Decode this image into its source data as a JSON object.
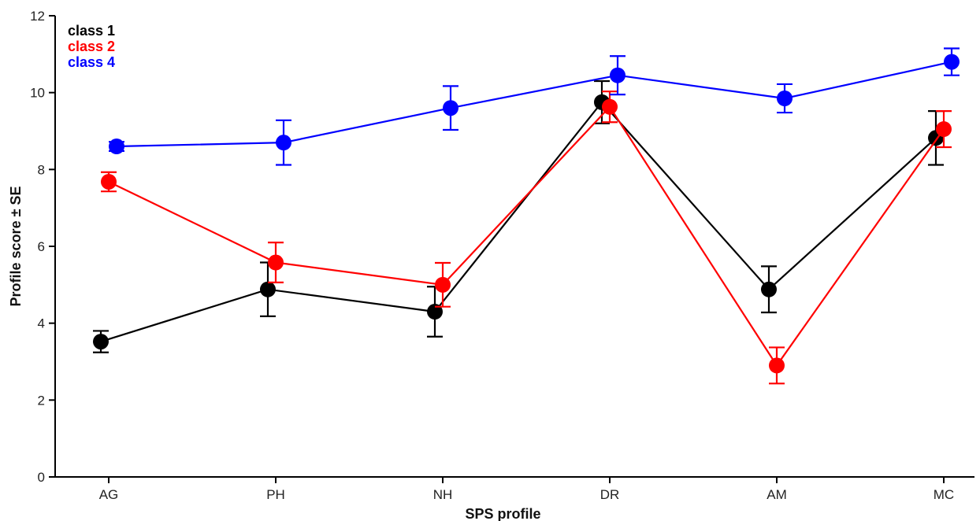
{
  "chart_data": {
    "type": "line",
    "title": "",
    "xlabel": "SPS profile",
    "ylabel": "Profile score ± SE",
    "categories": [
      "AG",
      "PH",
      "NH",
      "DR",
      "AM",
      "MC"
    ],
    "ylim": [
      0,
      12
    ],
    "yticks": [
      0,
      2,
      4,
      6,
      8,
      10,
      12
    ],
    "grid": false,
    "legend": "top-left",
    "series": [
      {
        "name": "class 1",
        "color": "#000000",
        "values": [
          3.52,
          4.88,
          4.3,
          9.75,
          4.88,
          8.82
        ],
        "errors": [
          0.28,
          0.7,
          0.65,
          0.55,
          0.6,
          0.7
        ]
      },
      {
        "name": "class 2",
        "color": "#ff0000",
        "values": [
          7.68,
          5.58,
          5.0,
          9.63,
          2.9,
          9.05
        ],
        "errors": [
          0.25,
          0.52,
          0.57,
          0.4,
          0.47,
          0.47
        ]
      },
      {
        "name": "class 4",
        "color": "#0000ff",
        "values": [
          8.6,
          8.7,
          9.6,
          10.45,
          9.85,
          10.8
        ],
        "errors": [
          0.12,
          0.58,
          0.57,
          0.5,
          0.37,
          0.35
        ]
      }
    ]
  }
}
